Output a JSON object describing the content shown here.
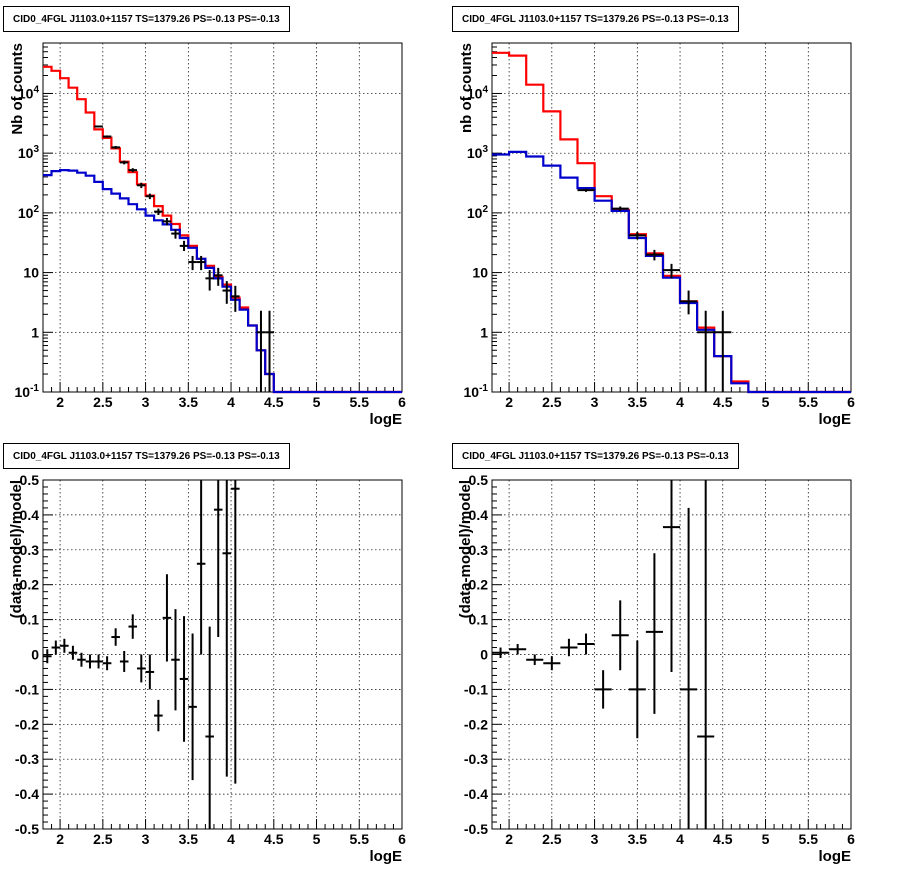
{
  "chart_data": [
    {
      "type": "histogram-log",
      "title": "CID0_4FGL J1103.0+1157 TS=1379.26 PS=-0.13 PS=-0.13",
      "xlabel": "logE",
      "ylabel": "Nb of counts",
      "xlim": [
        1.8,
        6.0
      ],
      "ylim": [
        0.1,
        70000
      ],
      "log_y": true,
      "grid": true,
      "x_ticks": [
        "2",
        "2.5",
        "3",
        "3.5",
        "4",
        "4.5",
        "5",
        "5.5",
        "6"
      ],
      "y_ticks": [
        "10^-1",
        "1",
        "10",
        "10^2",
        "10^3",
        "10^4"
      ],
      "bin_edges": [
        1.8,
        1.9,
        2.0,
        2.1,
        2.2,
        2.3,
        2.4,
        2.5,
        2.6,
        2.7,
        2.8,
        2.9,
        3.0,
        3.1,
        3.2,
        3.3,
        3.4,
        3.5,
        3.6,
        3.7,
        3.8,
        3.9,
        4.0,
        4.1,
        4.2,
        4.3,
        4.4,
        4.5,
        4.6,
        4.7,
        4.8,
        4.9,
        5.0,
        5.1,
        5.2,
        5.3,
        5.4,
        5.5,
        5.6,
        5.7,
        5.8,
        5.9,
        6.0
      ],
      "series": [
        {
          "color": "#ff0000",
          "values": [
            28000,
            24000,
            18000,
            12500,
            8000,
            4800,
            2500,
            1800,
            1200,
            720,
            480,
            300,
            195,
            130,
            90,
            65,
            42,
            28,
            17,
            13,
            8.5,
            6.3,
            3.8,
            2.6,
            1.3,
            0.5,
            0.2,
            0.1,
            0.1,
            0.1,
            0.1,
            0.1,
            0.1,
            0.1,
            0.1,
            0.1,
            0.1,
            0.1,
            0.1,
            0.1,
            0.1,
            0.1
          ]
        },
        {
          "color": "#0000cc",
          "values": [
            430,
            500,
            520,
            510,
            470,
            420,
            330,
            250,
            210,
            175,
            140,
            115,
            90,
            75,
            64,
            52,
            38,
            26,
            17,
            12,
            8,
            5.8,
            3.5,
            2.4,
            1.3,
            0.5,
            0.2,
            0.1,
            0.1,
            0.1,
            0.1,
            0.1,
            0.1,
            0.1,
            0.1,
            0.1,
            0.1,
            0.1,
            0.1,
            0.1,
            0.1,
            0.1
          ]
        }
      ],
      "points": [
        {
          "x": 2.45,
          "y": 2800,
          "xerr": 0.05,
          "ylo": 2700,
          "yhi": 2900
        },
        {
          "x": 2.55,
          "y": 1900,
          "xerr": 0.05,
          "ylo": 1820,
          "yhi": 1980
        },
        {
          "x": 2.65,
          "y": 1250,
          "xerr": 0.05,
          "ylo": 1180,
          "yhi": 1320
        },
        {
          "x": 2.75,
          "y": 700,
          "xerr": 0.05,
          "ylo": 650,
          "yhi": 750
        },
        {
          "x": 2.85,
          "y": 520,
          "xerr": 0.05,
          "ylo": 480,
          "yhi": 560
        },
        {
          "x": 2.95,
          "y": 290,
          "xerr": 0.05,
          "ylo": 260,
          "yhi": 320
        },
        {
          "x": 3.05,
          "y": 190,
          "xerr": 0.05,
          "ylo": 170,
          "yhi": 210
        },
        {
          "x": 3.15,
          "y": 105,
          "xerr": 0.05,
          "ylo": 92,
          "yhi": 118
        },
        {
          "x": 3.25,
          "y": 72,
          "xerr": 0.05,
          "ylo": 62,
          "yhi": 82
        },
        {
          "x": 3.35,
          "y": 45,
          "xerr": 0.05,
          "ylo": 37,
          "yhi": 53
        },
        {
          "x": 3.45,
          "y": 28,
          "xerr": 0.05,
          "ylo": 23,
          "yhi": 34
        },
        {
          "x": 3.55,
          "y": 15,
          "xerr": 0.05,
          "ylo": 11,
          "yhi": 19
        },
        {
          "x": 3.65,
          "y": 15,
          "xerr": 0.05,
          "ylo": 11,
          "yhi": 19
        },
        {
          "x": 3.75,
          "y": 8,
          "xerr": 0.05,
          "ylo": 5,
          "yhi": 11
        },
        {
          "x": 3.85,
          "y": 9,
          "xerr": 0.05,
          "ylo": 6,
          "yhi": 12
        },
        {
          "x": 3.95,
          "y": 5,
          "xerr": 0.05,
          "ylo": 3,
          "yhi": 7.2
        },
        {
          "x": 4.05,
          "y": 4,
          "xerr": 0.05,
          "ylo": 2.2,
          "yhi": 6
        },
        {
          "x": 4.35,
          "y": 1,
          "xerr": 0.05,
          "ylo": 0.1,
          "yhi": 2.3
        },
        {
          "x": 4.45,
          "y": 1,
          "xerr": 0.05,
          "ylo": 0.1,
          "yhi": 2.3
        }
      ]
    },
    {
      "type": "histogram-log",
      "title": "CID0_4FGL J1103.0+1157 TS=1379.26 PS=-0.13 PS=-0.13",
      "xlabel": "logE",
      "ylabel": "nb of counts",
      "xlim": [
        1.8,
        6.0
      ],
      "ylim": [
        0.1,
        70000
      ],
      "log_y": true,
      "grid": true,
      "x_ticks": [
        "2",
        "2.5",
        "3",
        "3.5",
        "4",
        "4.5",
        "5",
        "5.5",
        "6"
      ],
      "y_ticks": [
        "10^-1",
        "1",
        "10",
        "10^2",
        "10^3",
        "10^4"
      ],
      "bin_edges": [
        1.8,
        2.0,
        2.2,
        2.4,
        2.6,
        2.8,
        3.0,
        3.2,
        3.4,
        3.6,
        3.8,
        4.0,
        4.2,
        4.4,
        4.6,
        4.8,
        5.0,
        5.2,
        5.4,
        5.6,
        5.8,
        6.0
      ],
      "series": [
        {
          "color": "#ff0000",
          "values": [
            48000,
            43000,
            14000,
            5000,
            1700,
            680,
            190,
            112,
            44,
            21,
            8.8,
            3.3,
            1.2,
            0.4,
            0.15,
            0.1,
            0.1,
            0.1,
            0.1,
            0.1,
            0.1
          ]
        },
        {
          "color": "#0000cc",
          "values": [
            950,
            1050,
            880,
            620,
            390,
            260,
            160,
            108,
            38,
            19,
            8.2,
            3.1,
            1.1,
            0.4,
            0.14,
            0.1,
            0.1,
            0.1,
            0.1,
            0.1,
            0.1
          ]
        }
      ],
      "points": [
        {
          "x": 2.9,
          "y": 240,
          "xerr": 0.1,
          "ylo": 225,
          "yhi": 255
        },
        {
          "x": 3.3,
          "y": 118,
          "xerr": 0.1,
          "ylo": 108,
          "yhi": 128
        },
        {
          "x": 3.5,
          "y": 42,
          "xerr": 0.1,
          "ylo": 36,
          "yhi": 48
        },
        {
          "x": 3.7,
          "y": 20,
          "xerr": 0.1,
          "ylo": 16,
          "yhi": 24
        },
        {
          "x": 3.9,
          "y": 11,
          "xerr": 0.1,
          "ylo": 8,
          "yhi": 14
        },
        {
          "x": 4.1,
          "y": 3.3,
          "xerr": 0.1,
          "ylo": 2,
          "yhi": 5
        },
        {
          "x": 4.3,
          "y": 1,
          "xerr": 0.1,
          "ylo": 0.1,
          "yhi": 2.3
        },
        {
          "x": 4.5,
          "y": 1,
          "xerr": 0.1,
          "ylo": 0.1,
          "yhi": 2.3
        }
      ]
    },
    {
      "type": "scatter-errorbars",
      "title": "CID0_4FGL J1103.0+1157 TS=1379.26 PS=-0.13 PS=-0.13",
      "xlabel": "logE",
      "ylabel": "(data-model)/model",
      "xlim": [
        1.8,
        6.0
      ],
      "ylim": [
        -0.5,
        0.5
      ],
      "grid": true,
      "x_ticks": [
        "2",
        "2.5",
        "3",
        "3.5",
        "4",
        "4.5",
        "5",
        "5.5",
        "6"
      ],
      "y_ticks": [
        "-0.5",
        "-0.4",
        "-0.3",
        "-0.2",
        "-0.1",
        "0",
        "0.1",
        "0.2",
        "0.3",
        "0.4",
        "0.5"
      ],
      "points": [
        {
          "x": 1.85,
          "y": -0.005,
          "xerr": 0.05,
          "ylo": -0.025,
          "yhi": 0.015
        },
        {
          "x": 1.95,
          "y": 0.02,
          "xerr": 0.05,
          "ylo": 0.0,
          "yhi": 0.04
        },
        {
          "x": 2.05,
          "y": 0.025,
          "xerr": 0.05,
          "ylo": 0.005,
          "yhi": 0.045
        },
        {
          "x": 2.15,
          "y": 0.005,
          "xerr": 0.05,
          "ylo": -0.015,
          "yhi": 0.025
        },
        {
          "x": 2.25,
          "y": -0.015,
          "xerr": 0.05,
          "ylo": -0.035,
          "yhi": 0.005
        },
        {
          "x": 2.35,
          "y": -0.02,
          "xerr": 0.05,
          "ylo": -0.04,
          "yhi": 0.0
        },
        {
          "x": 2.45,
          "y": -0.02,
          "xerr": 0.05,
          "ylo": -0.04,
          "yhi": 0.0
        },
        {
          "x": 2.55,
          "y": -0.025,
          "xerr": 0.05,
          "ylo": -0.045,
          "yhi": -0.005
        },
        {
          "x": 2.65,
          "y": 0.05,
          "xerr": 0.05,
          "ylo": 0.025,
          "yhi": 0.075
        },
        {
          "x": 2.75,
          "y": -0.02,
          "xerr": 0.05,
          "ylo": -0.05,
          "yhi": 0.01
        },
        {
          "x": 2.85,
          "y": 0.08,
          "xerr": 0.05,
          "ylo": 0.045,
          "yhi": 0.115
        },
        {
          "x": 2.95,
          "y": -0.04,
          "xerr": 0.05,
          "ylo": -0.08,
          "yhi": 0.0
        },
        {
          "x": 3.05,
          "y": -0.05,
          "xerr": 0.05,
          "ylo": -0.1,
          "yhi": 0.0
        },
        {
          "x": 3.15,
          "y": -0.175,
          "xerr": 0.05,
          "ylo": -0.22,
          "yhi": -0.13
        },
        {
          "x": 3.25,
          "y": 0.105,
          "xerr": 0.05,
          "ylo": -0.02,
          "yhi": 0.23
        },
        {
          "x": 3.35,
          "y": -0.015,
          "xerr": 0.05,
          "ylo": -0.16,
          "yhi": 0.13
        },
        {
          "x": 3.45,
          "y": -0.07,
          "xerr": 0.05,
          "ylo": -0.25,
          "yhi": 0.11
        },
        {
          "x": 3.55,
          "y": -0.15,
          "xerr": 0.05,
          "ylo": -0.36,
          "yhi": 0.06
        },
        {
          "x": 3.65,
          "y": 0.26,
          "xerr": 0.05,
          "ylo": 0.0,
          "yhi": 0.52
        },
        {
          "x": 3.75,
          "y": -0.235,
          "xerr": 0.05,
          "ylo": -0.52,
          "yhi": 0.08
        },
        {
          "x": 3.85,
          "y": 0.415,
          "xerr": 0.05,
          "ylo": 0.05,
          "yhi": 0.52
        },
        {
          "x": 3.95,
          "y": 0.29,
          "xerr": 0.05,
          "ylo": -0.35,
          "yhi": 0.52
        },
        {
          "x": 4.05,
          "y": 0.475,
          "xerr": 0.05,
          "ylo": -0.37,
          "yhi": 0.52
        }
      ]
    },
    {
      "type": "scatter-errorbars",
      "title": "CID0_4FGL J1103.0+1157 TS=1379.26 PS=-0.13 PS=-0.13",
      "xlabel": "logE",
      "ylabel": "(data-model)/model",
      "xlim": [
        1.8,
        6.0
      ],
      "ylim": [
        -0.5,
        0.5
      ],
      "grid": true,
      "x_ticks": [
        "2",
        "2.5",
        "3",
        "3.5",
        "4",
        "4.5",
        "5",
        "5.5",
        "6"
      ],
      "y_ticks": [
        "-0.5",
        "-0.4",
        "-0.3",
        "-0.2",
        "-0.1",
        "0",
        "0.1",
        "0.2",
        "0.3",
        "0.4",
        "0.5"
      ],
      "points": [
        {
          "x": 1.9,
          "y": 0.005,
          "xerr": 0.1,
          "ylo": -0.01,
          "yhi": 0.02
        },
        {
          "x": 2.1,
          "y": 0.015,
          "xerr": 0.1,
          "ylo": 0.0,
          "yhi": 0.03
        },
        {
          "x": 2.3,
          "y": -0.015,
          "xerr": 0.1,
          "ylo": -0.03,
          "yhi": 0.0
        },
        {
          "x": 2.5,
          "y": -0.025,
          "xerr": 0.1,
          "ylo": -0.045,
          "yhi": -0.005
        },
        {
          "x": 2.7,
          "y": 0.02,
          "xerr": 0.1,
          "ylo": -0.005,
          "yhi": 0.045
        },
        {
          "x": 2.9,
          "y": 0.03,
          "xerr": 0.1,
          "ylo": 0.0,
          "yhi": 0.06
        },
        {
          "x": 3.1,
          "y": -0.1,
          "xerr": 0.1,
          "ylo": -0.155,
          "yhi": -0.045
        },
        {
          "x": 3.3,
          "y": 0.055,
          "xerr": 0.1,
          "ylo": -0.045,
          "yhi": 0.155
        },
        {
          "x": 3.5,
          "y": -0.1,
          "xerr": 0.1,
          "ylo": -0.24,
          "yhi": 0.04
        },
        {
          "x": 3.7,
          "y": 0.065,
          "xerr": 0.1,
          "ylo": -0.17,
          "yhi": 0.29
        },
        {
          "x": 3.9,
          "y": 0.365,
          "xerr": 0.1,
          "ylo": -0.05,
          "yhi": 0.52
        },
        {
          "x": 4.1,
          "y": -0.1,
          "xerr": 0.1,
          "ylo": -0.52,
          "yhi": 0.42
        },
        {
          "x": 4.3,
          "y": -0.235,
          "xerr": 0.1,
          "ylo": -0.52,
          "yhi": 0.52
        }
      ]
    }
  ]
}
